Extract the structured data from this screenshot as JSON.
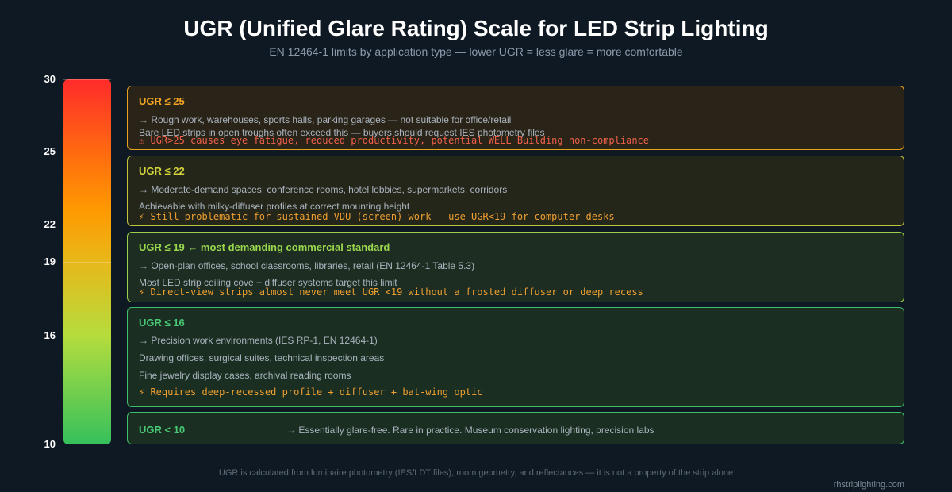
{
  "header": {
    "title": "UGR (Unified Glare Rating) Scale for LED Strip Lighting",
    "subtitle": "EN 12464-1 limits by application type — lower UGR = less glare = more comfortable"
  },
  "scale": {
    "ticks": [
      "30",
      "25",
      "22",
      "19",
      "16",
      "10"
    ],
    "colors": {
      "top": "#ff2b2b",
      "bottom": "#35c05c"
    }
  },
  "bands": [
    {
      "heading": "UGR ≤ 25",
      "lines": [
        "→ Rough work, warehouses, sports halls, parking garages — not suitable for office/retail",
        "Bare LED strips in open troughs often exceed this — buyers should request IES photometry files"
      ],
      "warning": "⚠ UGR>25 causes eye fatigue, reduced productivity, potential WELL Building non-compliance",
      "border_color": "#e8a21c",
      "heading_color": "#f5a623",
      "warning_color": "#f0604a"
    },
    {
      "heading": "UGR ≤ 22",
      "lines": [
        "→ Moderate-demand spaces: conference rooms, hotel lobbies, supermarkets, corridors",
        "Achievable with milky-diffuser profiles at correct mounting height"
      ],
      "warning": "⚡ Still problematic for sustained VDU (screen) work — use UGR<19 for computer desks",
      "border_color": "#c3c43a",
      "heading_color": "#d4d43c",
      "warning_color": "#f0a030"
    },
    {
      "heading": "UGR ≤ 19 ← most demanding commercial standard",
      "lines": [
        "→ Open-plan offices, school classrooms, libraries, retail (EN 12464-1 Table 5.3)",
        "Most LED strip ceiling cove + diffuser systems target this limit"
      ],
      "warning": "⚡ Direct-view strips almost never meet UGR <19 without a frosted diffuser or deep recess",
      "border_color": "#9bd14a",
      "heading_color": "#9ad84e",
      "warning_color": "#f0a030"
    },
    {
      "heading": "UGR ≤ 16",
      "lines": [
        "→ Precision work environments (IES RP-1, EN 12464-1)",
        "Drawing offices, surgical suites, technical inspection areas",
        "Fine jewelry display cases, archival reading rooms"
      ],
      "warning": "⚡ Requires deep-recessed profile + diffuser + bat-wing optic",
      "border_color": "#3fbf6a",
      "heading_color": "#48c774",
      "warning_color": "#f0a030"
    },
    {
      "heading": "UGR < 10",
      "lines": [
        "→ Essentially glare-free. Rare in practice. Museum conservation lighting, precision labs"
      ],
      "warning": "",
      "border_color": "#3fbf6a",
      "heading_color": "#48c774",
      "warning_color": "#f0a030"
    }
  ],
  "footer": {
    "note": "UGR is calculated from luminaire photometry (IES/LDT files), room geometry, and reflectances — it is not a property of the strip alone",
    "credit": "rhstriplighting.com"
  }
}
